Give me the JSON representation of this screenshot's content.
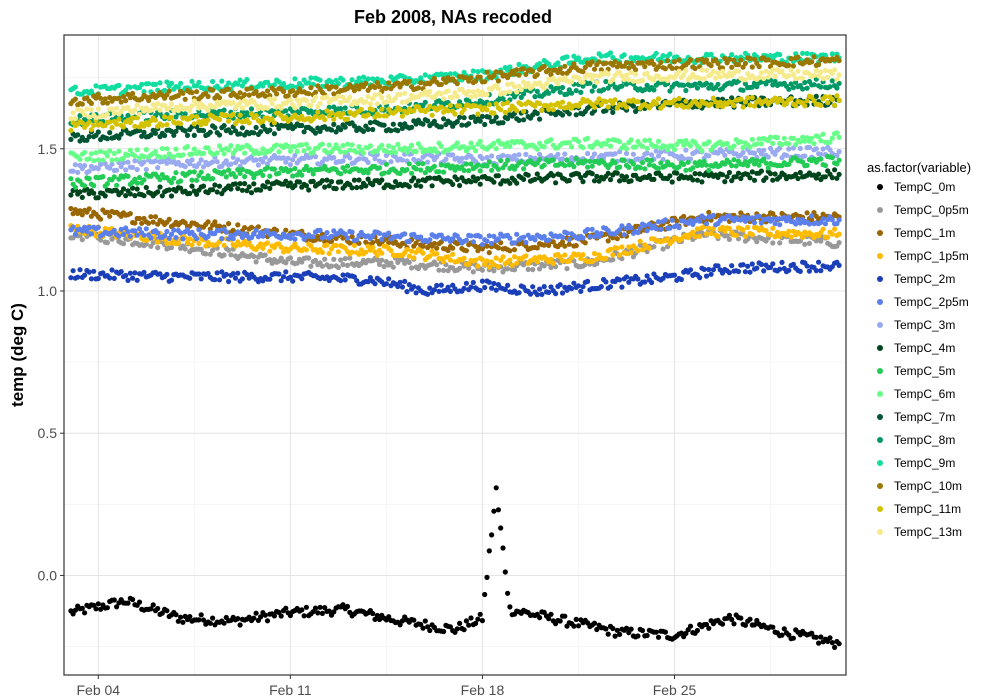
{
  "chart_data": {
    "type": "scatter",
    "title": "Feb 2008, NAs recoded",
    "xlabel": "",
    "ylabel": "temp (deg C)",
    "x_range": [
      "2008-02-02T18:00",
      "2008-03-02T06:00"
    ],
    "ylim": [
      -0.35,
      1.9
    ],
    "x_ticks": [
      {
        "date": "2008-02-04",
        "label": "Feb 04"
      },
      {
        "date": "2008-02-11",
        "label": "Feb 11"
      },
      {
        "date": "2008-02-18",
        "label": "Feb 18"
      },
      {
        "date": "2008-02-25",
        "label": "Feb 25"
      }
    ],
    "y_ticks": [
      {
        "value": 0.0,
        "label": "0.0"
      },
      {
        "value": 0.5,
        "label": "0.5"
      },
      {
        "value": 1.0,
        "label": "1.0"
      },
      {
        "value": 1.5,
        "label": "1.5"
      }
    ],
    "grid": true,
    "legend_title": "as.factor(variable)",
    "legend_position": "right",
    "series": [
      {
        "name": "TempC_0m",
        "color": "#000000",
        "points": [
          [
            "2008-02-03",
            -0.13
          ],
          [
            "2008-02-05",
            -0.09
          ],
          [
            "2008-02-07",
            -0.15
          ],
          [
            "2008-02-09",
            -0.16
          ],
          [
            "2008-02-11",
            -0.13
          ],
          [
            "2008-02-13",
            -0.12
          ],
          [
            "2008-02-15",
            -0.16
          ],
          [
            "2008-02-17",
            -0.19
          ],
          [
            "2008-02-18",
            -0.15
          ],
          [
            "2008-02-18T12:00",
            0.3
          ],
          [
            "2008-02-19",
            -0.12
          ],
          [
            "2008-02-21",
            -0.16
          ],
          [
            "2008-02-23",
            -0.2
          ],
          [
            "2008-02-25",
            -0.21
          ],
          [
            "2008-02-27",
            -0.15
          ],
          [
            "2008-02-29",
            -0.2
          ],
          [
            "2008-03-02",
            -0.24
          ]
        ]
      },
      {
        "name": "TempC_0p5m",
        "color": "#999999",
        "points": [
          [
            "2008-02-03",
            1.2
          ],
          [
            "2008-02-07",
            1.16
          ],
          [
            "2008-02-11",
            1.1
          ],
          [
            "2008-02-15",
            1.1
          ],
          [
            "2008-02-18",
            1.08
          ],
          [
            "2008-02-22",
            1.1
          ],
          [
            "2008-02-26",
            1.2
          ],
          [
            "2008-03-02",
            1.17
          ]
        ]
      },
      {
        "name": "TempC_1m",
        "color": "#996600",
        "points": [
          [
            "2008-02-03",
            1.28
          ],
          [
            "2008-02-07",
            1.24
          ],
          [
            "2008-02-11",
            1.2
          ],
          [
            "2008-02-15",
            1.17
          ],
          [
            "2008-02-18",
            1.15
          ],
          [
            "2008-02-22",
            1.18
          ],
          [
            "2008-02-26",
            1.26
          ],
          [
            "2008-03-02",
            1.26
          ]
        ]
      },
      {
        "name": "TempC_1p5m",
        "color": "#FFBB00",
        "points": [
          [
            "2008-02-03",
            1.22
          ],
          [
            "2008-02-07",
            1.18
          ],
          [
            "2008-02-11",
            1.15
          ],
          [
            "2008-02-15",
            1.14
          ],
          [
            "2008-02-18",
            1.1
          ],
          [
            "2008-02-22",
            1.12
          ],
          [
            "2008-02-26",
            1.21
          ],
          [
            "2008-03-02",
            1.2
          ]
        ]
      },
      {
        "name": "TempC_2m",
        "color": "#1B3FB8",
        "points": [
          [
            "2008-02-03",
            1.06
          ],
          [
            "2008-02-07",
            1.05
          ],
          [
            "2008-02-11",
            1.05
          ],
          [
            "2008-02-14",
            1.04
          ],
          [
            "2008-02-16",
            1.0
          ],
          [
            "2008-02-18",
            1.02
          ],
          [
            "2008-02-20",
            1.0
          ],
          [
            "2008-02-23",
            1.03
          ],
          [
            "2008-02-25",
            1.05
          ],
          [
            "2008-02-27",
            1.08
          ],
          [
            "2008-03-02",
            1.09
          ]
        ]
      },
      {
        "name": "TempC_2p5m",
        "color": "#5B7FEB",
        "points": [
          [
            "2008-02-03",
            1.21
          ],
          [
            "2008-02-07",
            1.2
          ],
          [
            "2008-02-11",
            1.2
          ],
          [
            "2008-02-15",
            1.19
          ],
          [
            "2008-02-18",
            1.18
          ],
          [
            "2008-02-22",
            1.2
          ],
          [
            "2008-02-26",
            1.25
          ],
          [
            "2008-03-02",
            1.25
          ]
        ]
      },
      {
        "name": "TempC_3m",
        "color": "#99AAF0",
        "points": [
          [
            "2008-02-03",
            1.43
          ],
          [
            "2008-02-07",
            1.45
          ],
          [
            "2008-02-11",
            1.46
          ],
          [
            "2008-02-15",
            1.47
          ],
          [
            "2008-02-18",
            1.46
          ],
          [
            "2008-02-22",
            1.47
          ],
          [
            "2008-02-26",
            1.48
          ],
          [
            "2008-03-02",
            1.49
          ]
        ]
      },
      {
        "name": "TempC_4m",
        "color": "#00441B",
        "points": [
          [
            "2008-02-03",
            1.34
          ],
          [
            "2008-02-07",
            1.35
          ],
          [
            "2008-02-11",
            1.37
          ],
          [
            "2008-02-15",
            1.38
          ],
          [
            "2008-02-18",
            1.39
          ],
          [
            "2008-02-22",
            1.4
          ],
          [
            "2008-02-26",
            1.4
          ],
          [
            "2008-03-02",
            1.41
          ]
        ]
      },
      {
        "name": "TempC_5m",
        "color": "#22CC55",
        "points": [
          [
            "2008-02-03",
            1.38
          ],
          [
            "2008-02-07",
            1.4
          ],
          [
            "2008-02-11",
            1.42
          ],
          [
            "2008-02-15",
            1.43
          ],
          [
            "2008-02-18",
            1.44
          ],
          [
            "2008-02-22",
            1.45
          ],
          [
            "2008-02-26",
            1.44
          ],
          [
            "2008-03-02",
            1.46
          ]
        ]
      },
      {
        "name": "TempC_6m",
        "color": "#66FF88",
        "points": [
          [
            "2008-02-03",
            1.47
          ],
          [
            "2008-02-07",
            1.49
          ],
          [
            "2008-02-11",
            1.5
          ],
          [
            "2008-02-15",
            1.5
          ],
          [
            "2008-02-18",
            1.51
          ],
          [
            "2008-02-22",
            1.52
          ],
          [
            "2008-02-26",
            1.51
          ],
          [
            "2008-03-02",
            1.54
          ]
        ]
      },
      {
        "name": "TempC_7m",
        "color": "#005533",
        "points": [
          [
            "2008-02-03",
            1.54
          ],
          [
            "2008-02-07",
            1.56
          ],
          [
            "2008-02-11",
            1.57
          ],
          [
            "2008-02-15",
            1.58
          ],
          [
            "2008-02-18",
            1.6
          ],
          [
            "2008-02-22",
            1.64
          ],
          [
            "2008-02-26",
            1.66
          ],
          [
            "2008-03-02",
            1.67
          ]
        ]
      },
      {
        "name": "TempC_8m",
        "color": "#009966",
        "points": [
          [
            "2008-02-03",
            1.6
          ],
          [
            "2008-02-07",
            1.62
          ],
          [
            "2008-02-11",
            1.63
          ],
          [
            "2008-02-15",
            1.64
          ],
          [
            "2008-02-18",
            1.67
          ],
          [
            "2008-02-22",
            1.72
          ],
          [
            "2008-02-26",
            1.72
          ],
          [
            "2008-03-02",
            1.73
          ]
        ]
      },
      {
        "name": "TempC_9m",
        "color": "#11DDA0",
        "points": [
          [
            "2008-02-03",
            1.7
          ],
          [
            "2008-02-07",
            1.72
          ],
          [
            "2008-02-11",
            1.73
          ],
          [
            "2008-02-15",
            1.74
          ],
          [
            "2008-02-18",
            1.76
          ],
          [
            "2008-02-22",
            1.82
          ],
          [
            "2008-02-26",
            1.82
          ],
          [
            "2008-03-02",
            1.82
          ]
        ]
      },
      {
        "name": "TempC_10m",
        "color": "#997700",
        "points": [
          [
            "2008-02-03",
            1.67
          ],
          [
            "2008-02-07",
            1.69
          ],
          [
            "2008-02-11",
            1.7
          ],
          [
            "2008-02-15",
            1.72
          ],
          [
            "2008-02-18",
            1.75
          ],
          [
            "2008-02-22",
            1.79
          ],
          [
            "2008-02-26",
            1.8
          ],
          [
            "2008-03-02",
            1.81
          ]
        ]
      },
      {
        "name": "TempC_11m",
        "color": "#D4C200",
        "points": [
          [
            "2008-02-03",
            1.58
          ],
          [
            "2008-02-07",
            1.6
          ],
          [
            "2008-02-11",
            1.61
          ],
          [
            "2008-02-15",
            1.63
          ],
          [
            "2008-02-18",
            1.64
          ],
          [
            "2008-02-22",
            1.66
          ],
          [
            "2008-02-26",
            1.66
          ],
          [
            "2008-03-02",
            1.67
          ]
        ]
      },
      {
        "name": "TempC_13m",
        "color": "#F5EB8C",
        "points": [
          [
            "2008-02-03",
            1.62
          ],
          [
            "2008-02-07",
            1.65
          ],
          [
            "2008-02-11",
            1.66
          ],
          [
            "2008-02-15",
            1.68
          ],
          [
            "2008-02-18",
            1.7
          ],
          [
            "2008-02-22",
            1.75
          ],
          [
            "2008-02-26",
            1.76
          ],
          [
            "2008-03-02",
            1.76
          ]
        ]
      }
    ]
  }
}
